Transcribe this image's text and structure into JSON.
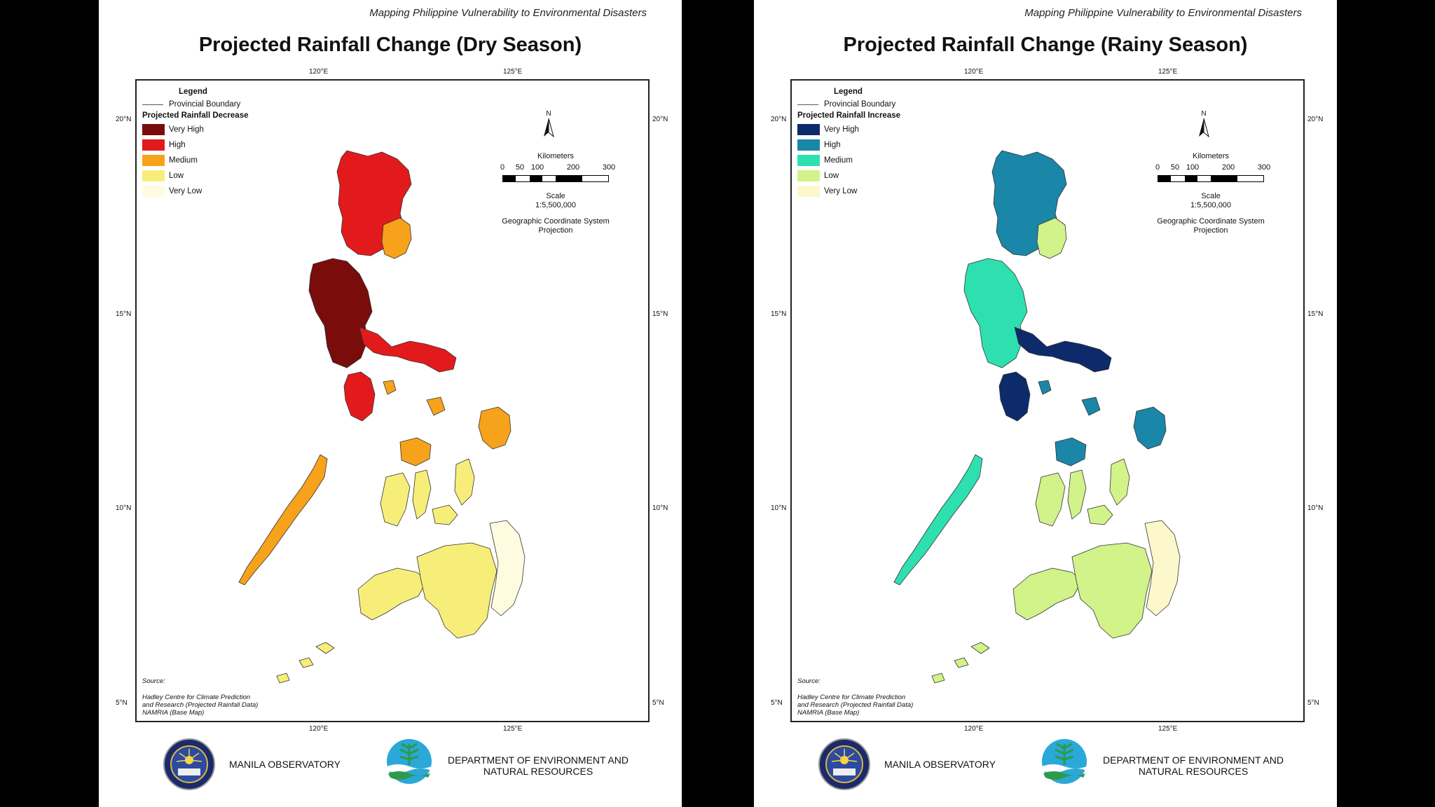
{
  "panels": [
    {
      "id": "dry",
      "header": "Mapping Philippine Vulnerability to Environmental Disasters",
      "title": "Projected Rainfall Change (Dry Season)",
      "legend": {
        "title": "Legend",
        "boundary_label": "Provincial Boundary",
        "heading": "Projected Rainfall Decrease",
        "classes": [
          {
            "label": "Very High",
            "color": "#7a0c0c"
          },
          {
            "label": "High",
            "color": "#e31a1c"
          },
          {
            "label": "Medium",
            "color": "#f7a21b"
          },
          {
            "label": "Low",
            "color": "#f7ee7a"
          },
          {
            "label": "Very Low",
            "color": "#fefbe0"
          }
        ]
      },
      "zone_colors": {
        "north": "#e31a1c",
        "east_luzon": "#f7a21b",
        "central_luzon": "#7a0c0c",
        "south_luzon": "#e31a1c",
        "islands": "#f7a21b",
        "palawan": "#f7a21b",
        "visayas": "#f7ee7a",
        "mindanao": "#f7ee7a",
        "east_mindanao": "#fefbe0"
      }
    },
    {
      "id": "rainy",
      "header": "Mapping Philippine Vulnerability to Environmental Disasters",
      "title": "Projected Rainfall Change (Rainy Season)",
      "legend": {
        "title": "Legend",
        "boundary_label": "Provincial Boundary",
        "heading": "Projected Rainfall Increase",
        "classes": [
          {
            "label": "Very High",
            "color": "#0d2a6b"
          },
          {
            "label": "High",
            "color": "#1a86a8"
          },
          {
            "label": "Medium",
            "color": "#2ee0b0"
          },
          {
            "label": "Low",
            "color": "#d2f28a"
          },
          {
            "label": "Very Low",
            "color": "#fdf8cc"
          }
        ]
      },
      "zone_colors": {
        "north": "#1a86a8",
        "east_luzon": "#d2f28a",
        "central_luzon": "#2ee0b0",
        "south_luzon": "#0d2a6b",
        "islands": "#1a86a8",
        "palawan": "#2ee0b0",
        "visayas": "#d2f28a",
        "mindanao": "#d2f28a",
        "east_mindanao": "#fdf8cc"
      }
    }
  ],
  "map": {
    "lon_labels": [
      "120°E",
      "125°E"
    ],
    "lat_labels": [
      "20°N",
      "15°N",
      "10°N",
      "5°N"
    ],
    "north_label": "N",
    "scale": {
      "unit_label": "Kilometers",
      "ticks": [
        "0",
        "50",
        "100",
        "200",
        "300"
      ],
      "ratio_label": "Scale",
      "ratio": "1:5,500,000",
      "projection_line1": "Geographic Coordinate System",
      "projection_line2": "Projection"
    },
    "source": {
      "title": "Source:",
      "line1": "Hadley Centre for Climate Prediction",
      "line2": "and Research (Projected Rainfall Data)",
      "line3": "NAMRIA (Base Map)"
    }
  },
  "footer": {
    "org1": "MANILA OBSERVATORY",
    "org2_line1": "DEPARTMENT OF ENVIRONMENT AND",
    "org2_line2": "NATURAL RESOURCES"
  }
}
